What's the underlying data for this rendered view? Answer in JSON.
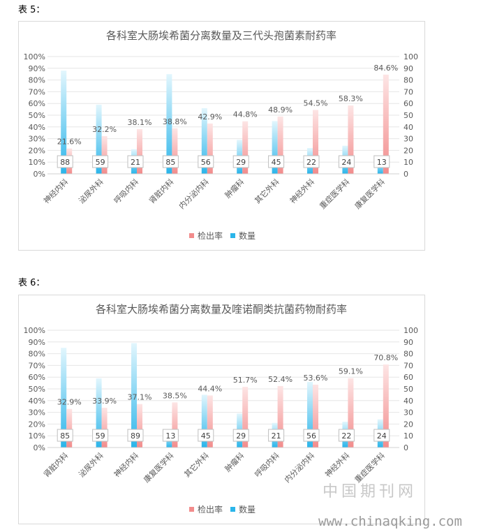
{
  "labels": {
    "table5": "表 5：",
    "table6": "表 6："
  },
  "watermark": {
    "text_cn": "中国期刊网",
    "url": "www.chinaqking.com"
  },
  "colors": {
    "rate_bar": "#f28c8c",
    "count_bar": "#2bb5ea",
    "grid": "#e6e6e6",
    "text": "#595959"
  },
  "chart_data": [
    {
      "type": "bar",
      "title": "各科室大肠埃希菌分离数量及三代头孢菌素耐药率",
      "categories": [
        "神经内科",
        "泌尿外科",
        "呼吸内科",
        "肾脏内科",
        "内分泌内科",
        "肿瘤科",
        "其它外科",
        "神经外科",
        "重症医学科",
        "康复医学科"
      ],
      "series": [
        {
          "name": "检出率",
          "axis": "left",
          "unit": "%",
          "values": [
            21.6,
            32.2,
            38.1,
            38.8,
            42.9,
            44.8,
            48.9,
            54.5,
            58.3,
            84.6
          ],
          "labels": [
            "21.6%",
            "32.2%",
            "38.1%",
            "38.8%",
            "42.9%",
            "44.8%",
            "48.9%",
            "54.5%",
            "58.3%",
            "84.6%"
          ]
        },
        {
          "name": "数量",
          "axis": "right",
          "values": [
            88,
            59,
            21,
            85,
            56,
            29,
            45,
            22,
            24,
            13
          ],
          "labels": [
            "88",
            "59",
            "21",
            "85",
            "56",
            "29",
            "45",
            "22",
            "24",
            "13"
          ]
        }
      ],
      "left_ticks": [
        "0%",
        "10%",
        "20%",
        "30%",
        "40%",
        "50%",
        "60%",
        "70%",
        "80%",
        "90%",
        "100%"
      ],
      "right_ticks": [
        "0",
        "10",
        "20",
        "30",
        "40",
        "50",
        "60",
        "70",
        "80",
        "90",
        "100"
      ],
      "ylim_left": [
        0,
        100
      ],
      "ylim_right": [
        0,
        100
      ],
      "legend_position": "bottom",
      "grid": true
    },
    {
      "type": "bar",
      "title": "各科室大肠埃希菌分离数量及喹诺酮类抗菌药物耐药率",
      "categories": [
        "肾脏内科",
        "泌尿外科",
        "神经内科",
        "康复医学科",
        "其它外科",
        "肿瘤科",
        "呼吸内科",
        "内分泌内科",
        "神经外科",
        "重症医学科"
      ],
      "series": [
        {
          "name": "检出率",
          "axis": "left",
          "unit": "%",
          "values": [
            32.9,
            33.9,
            37.1,
            38.5,
            44.4,
            51.7,
            52.4,
            53.6,
            59.1,
            70.8
          ],
          "labels": [
            "32.9%",
            "33.9%",
            "37.1%",
            "38.5%",
            "44.4%",
            "51.7%",
            "52.4%",
            "53.6%",
            "59.1%",
            "70.8%"
          ]
        },
        {
          "name": "数量",
          "axis": "right",
          "values": [
            85,
            59,
            89,
            13,
            45,
            29,
            21,
            56,
            22,
            24
          ],
          "labels": [
            "85",
            "59",
            "89",
            "13",
            "45",
            "29",
            "21",
            "56",
            "22",
            "24"
          ]
        }
      ],
      "left_ticks": [
        "0%",
        "10%",
        "20%",
        "30%",
        "40%",
        "50%",
        "60%",
        "70%",
        "80%",
        "90%",
        "100%"
      ],
      "right_ticks": [
        "0",
        "10",
        "20",
        "30",
        "40",
        "50",
        "60",
        "70",
        "80",
        "90",
        "100"
      ],
      "ylim_left": [
        0,
        100
      ],
      "ylim_right": [
        0,
        100
      ],
      "legend_position": "bottom",
      "grid": true
    }
  ]
}
